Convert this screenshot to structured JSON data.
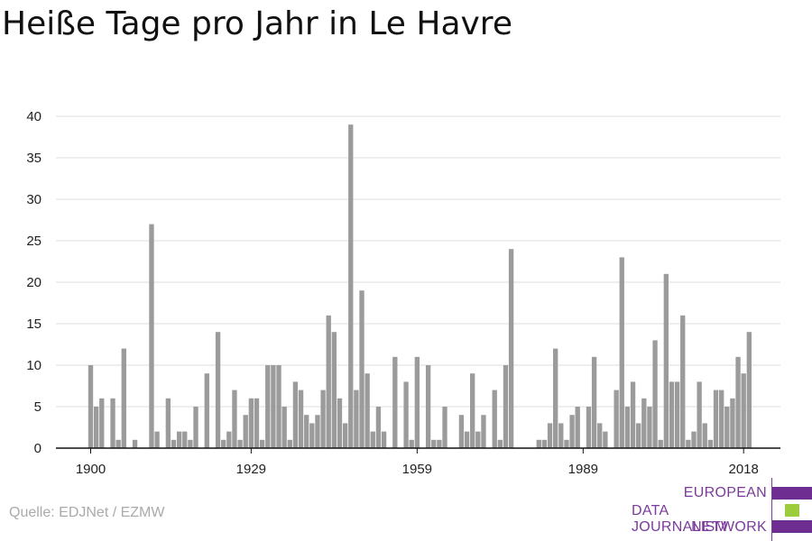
{
  "title": "Heiße Tage pro Jahr in Le Havre",
  "source": "Quelle: EDJNet / EZMW",
  "logo": {
    "lines": [
      "EUROPEAN",
      "DATA JOURNALISM",
      "NETWORK"
    ],
    "colors": {
      "purple": "#6d2d91",
      "green": "#9ccc3c"
    }
  },
  "colors": {
    "bar": "#9b9b9b",
    "grid": "#dddddd",
    "axis": "#111111"
  },
  "chart_data": {
    "type": "bar",
    "title": "Heiße Tage pro Jahr in Le Havre",
    "xlabel": "",
    "ylabel": "",
    "ylim": [
      0,
      40
    ],
    "yticks": [
      0,
      5,
      10,
      15,
      20,
      25,
      30,
      35,
      40
    ],
    "xticks": [
      1900,
      1929,
      1959,
      1989,
      2018
    ],
    "grid": true,
    "x": [
      1900,
      1901,
      1902,
      1903,
      1904,
      1905,
      1906,
      1907,
      1908,
      1909,
      1910,
      1911,
      1912,
      1913,
      1914,
      1915,
      1916,
      1917,
      1918,
      1919,
      1920,
      1921,
      1922,
      1923,
      1924,
      1925,
      1926,
      1927,
      1928,
      1929,
      1930,
      1931,
      1932,
      1933,
      1934,
      1935,
      1936,
      1937,
      1938,
      1939,
      1940,
      1941,
      1942,
      1943,
      1944,
      1945,
      1946,
      1947,
      1948,
      1949,
      1950,
      1951,
      1952,
      1953,
      1954,
      1955,
      1956,
      1957,
      1958,
      1959,
      1960,
      1961,
      1962,
      1963,
      1964,
      1965,
      1966,
      1967,
      1968,
      1969,
      1970,
      1971,
      1972,
      1973,
      1974,
      1975,
      1976,
      1977,
      1978,
      1979,
      1980,
      1981,
      1982,
      1983,
      1984,
      1985,
      1986,
      1987,
      1988,
      1989,
      1990,
      1991,
      1992,
      1993,
      1994,
      1995,
      1996,
      1997,
      1998,
      1999,
      2000,
      2001,
      2002,
      2003,
      2004,
      2005,
      2006,
      2007,
      2008,
      2009,
      2010,
      2011,
      2012,
      2013,
      2014,
      2015,
      2016,
      2017,
      2018,
      2019,
      2020
    ],
    "values": [
      10,
      5,
      6,
      0,
      6,
      1,
      12,
      0,
      1,
      0,
      0,
      27,
      2,
      0,
      6,
      1,
      2,
      2,
      1,
      5,
      0,
      9,
      0,
      14,
      1,
      2,
      7,
      1,
      4,
      6,
      6,
      1,
      10,
      10,
      10,
      5,
      1,
      8,
      7,
      4,
      3,
      4,
      7,
      16,
      14,
      6,
      3,
      39,
      7,
      19,
      9,
      2,
      5,
      2,
      0,
      11,
      0,
      8,
      1,
      11,
      0,
      10,
      1,
      1,
      5,
      0,
      0,
      4,
      2,
      9,
      2,
      4,
      0,
      7,
      1,
      10,
      24,
      0,
      0,
      0,
      0,
      1,
      1,
      3,
      12,
      3,
      1,
      4,
      5,
      0,
      5,
      11,
      3,
      2,
      0,
      7,
      23,
      5,
      8,
      3,
      6,
      5,
      13,
      1,
      21,
      8,
      8,
      16,
      1,
      2,
      8,
      3,
      1,
      7,
      7,
      5,
      6,
      11,
      9,
      14,
      0
    ]
  }
}
